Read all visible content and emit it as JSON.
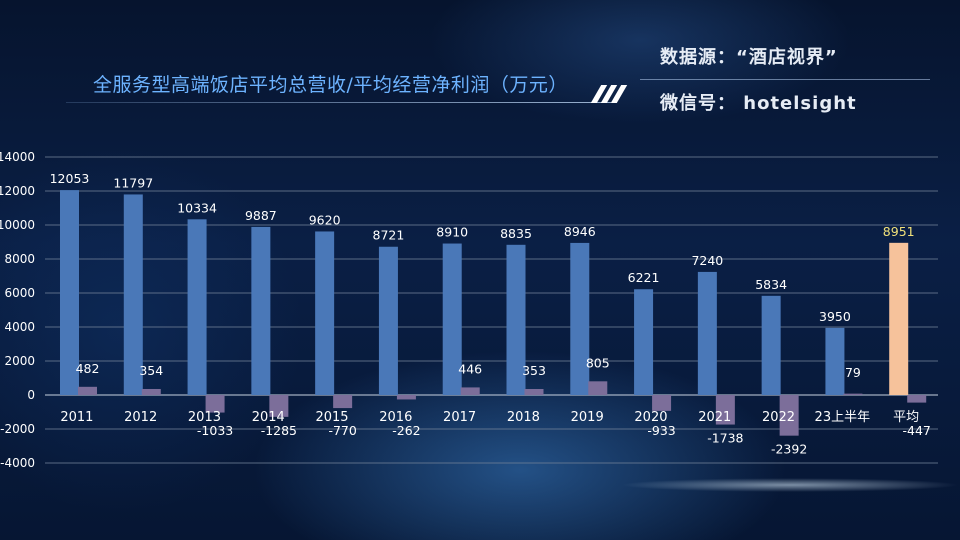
{
  "header": {
    "title": "全服务型高端饭店平均总营收/平均经营净利润（万元）",
    "source": "数据源：“酒店视界”",
    "wechat": "微信号： hotelsight"
  },
  "colors": {
    "revenue": "#4a78b8",
    "profit": "#7c6e9a",
    "average_revenue": "#f6c29b",
    "highlight_label": "#f0e07a"
  },
  "chart_data": {
    "type": "bar",
    "categories": [
      "2011",
      "2012",
      "2013",
      "2014",
      "2015",
      "2016",
      "2017",
      "2018",
      "2019",
      "2020",
      "2021",
      "2022",
      "23上半年",
      "平均"
    ],
    "series": [
      {
        "values": [
          12053,
          11797,
          10334,
          9887,
          9620,
          8721,
          8910,
          8835,
          8946,
          6221,
          7240,
          5834,
          3950,
          8951
        ]
      },
      {
        "values": [
          482,
          354,
          -1033,
          -1285,
          -770,
          -262,
          446,
          353,
          805,
          -933,
          -1738,
          -2392,
          79,
          -447
        ]
      }
    ],
    "ylim": [
      -4000,
      14000
    ],
    "yticks": [
      -4000,
      -2000,
      0,
      2000,
      4000,
      6000,
      8000,
      10000,
      12000,
      14000
    ],
    "grid": true
  }
}
